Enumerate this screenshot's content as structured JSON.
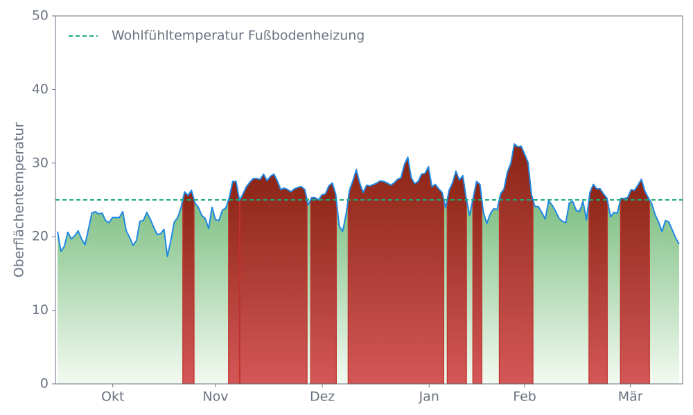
{
  "chart_data": {
    "type": "area",
    "ylabel": "Oberflächentemperatur",
    "ylim": [
      0,
      50
    ],
    "yticks": [
      0,
      10,
      20,
      30,
      40,
      50
    ],
    "xlim": [
      -0.6,
      182.0
    ],
    "xticks": [
      {
        "value": 16.1,
        "label": "Okt"
      },
      {
        "value": 46.0,
        "label": "Nov"
      },
      {
        "value": 77.1,
        "label": "Dez"
      },
      {
        "value": 108.2,
        "label": "Jan"
      },
      {
        "value": 136.0,
        "label": "Feb"
      },
      {
        "value": 166.8,
        "label": "Mär"
      }
    ],
    "threshold": {
      "value": 25,
      "label": "Wohlfühltemperatur Fußbodenheizung",
      "color": "#1aaa7a"
    },
    "legend": "upper left",
    "above_color": [
      "#8b2515",
      "#d45757"
    ],
    "below_color": [
      "#5aae62",
      "#f3faf1"
    ],
    "series": [
      {
        "color": "#1e88e5",
        "values": [
          20.7,
          18.0,
          18.7,
          20.6,
          19.7,
          20.1,
          20.8,
          19.7,
          18.9,
          21.0,
          23.2,
          23.4,
          23.1,
          23.2,
          22.2,
          21.9,
          22.6,
          22.6,
          22.6,
          23.4,
          20.8,
          19.9,
          18.8,
          19.5,
          22.1,
          22.2,
          23.3,
          22.4,
          21.3,
          20.3,
          20.4,
          21.0,
          17.3,
          19.5,
          22.0,
          22.6,
          24.0,
          26.1,
          25.6,
          26.3,
          24.6,
          24.0,
          22.9,
          22.5,
          21.1,
          24.0,
          22.3,
          22.2,
          23.6,
          23.9,
          25.3,
          27.5,
          27.5,
          24.9,
          25.8,
          26.8,
          27.4,
          27.9,
          27.9,
          27.8,
          28.5,
          27.6,
          28.2,
          28.5,
          27.6,
          26.4,
          26.6,
          26.4,
          26.1,
          26.5,
          26.7,
          26.8,
          26.4,
          24.3,
          25.3,
          25.3,
          25.0,
          25.7,
          25.8,
          26.9,
          27.3,
          25.8,
          21.5,
          20.7,
          23.0,
          26.3,
          27.6,
          29.1,
          27.3,
          26.0,
          27.0,
          26.9,
          27.1,
          27.3,
          27.6,
          27.5,
          27.3,
          27.0,
          27.3,
          27.8,
          28.0,
          29.8,
          30.8,
          28.0,
          27.2,
          27.5,
          28.5,
          28.6,
          29.5,
          26.8,
          27.1,
          26.5,
          26.0,
          23.9,
          26.3,
          27.3,
          28.9,
          27.7,
          28.3,
          25.2,
          22.9,
          25.2,
          27.5,
          27.1,
          23.3,
          21.8,
          23.1,
          23.8,
          23.7,
          25.8,
          26.5,
          28.8,
          30.0,
          32.6,
          32.2,
          32.3,
          31.2,
          30.1,
          25.7,
          24.1,
          24.1,
          23.3,
          22.4,
          24.9,
          24.3,
          23.5,
          22.5,
          22.1,
          21.9,
          24.6,
          24.8,
          23.6,
          23.4,
          24.8,
          22.3,
          26.0,
          27.1,
          26.5,
          26.5,
          25.8,
          25.2,
          22.7,
          23.3,
          23.2,
          25.2,
          25.2,
          25.3,
          26.4,
          26.3,
          27.0,
          27.8,
          26.2,
          25.3,
          24.5,
          23.0,
          22.0,
          20.7,
          22.2,
          22.0,
          20.9,
          19.8,
          19.0
        ]
      }
    ]
  }
}
